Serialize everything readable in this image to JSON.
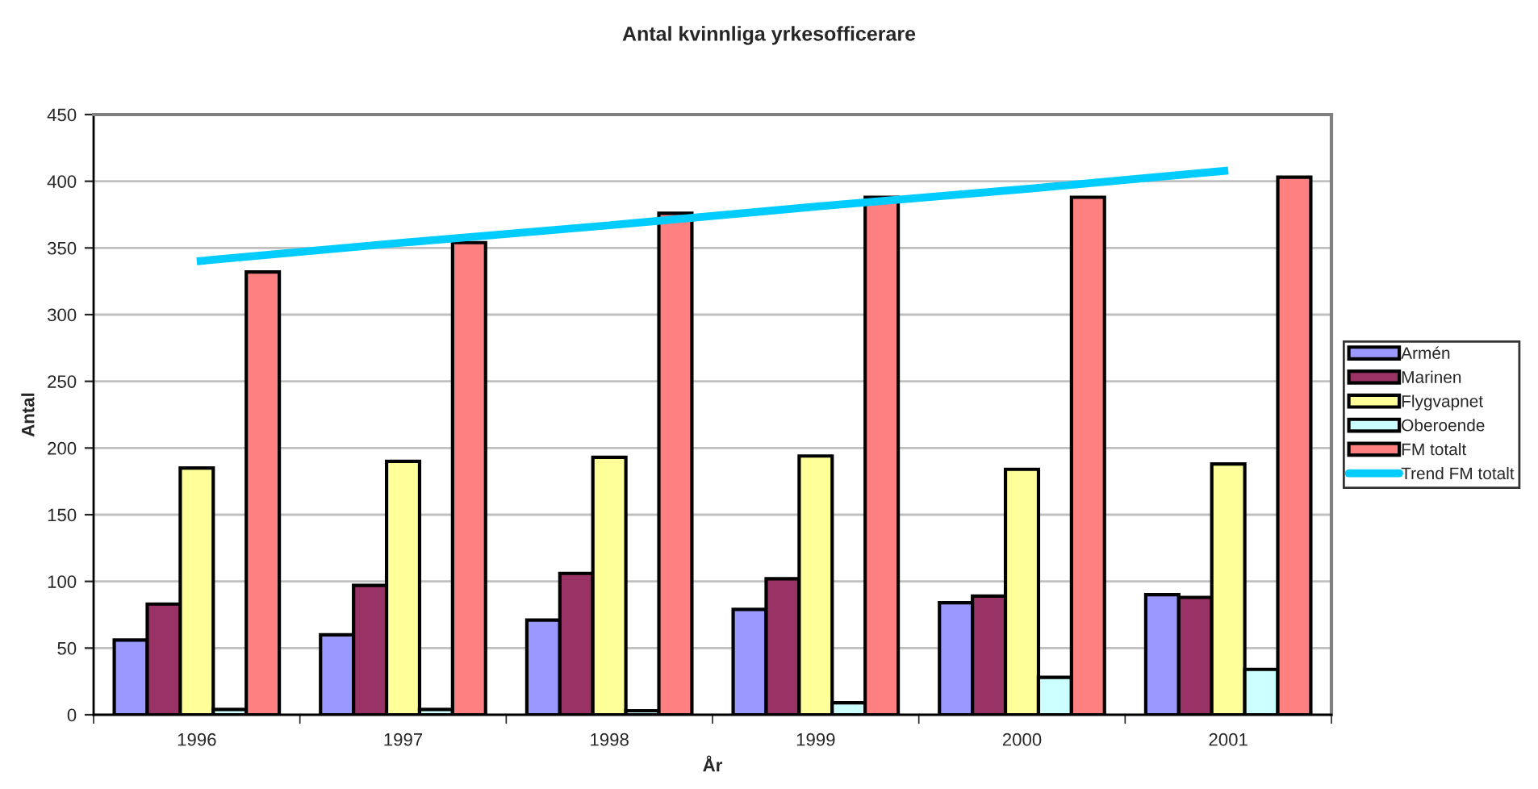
{
  "chart_data": {
    "type": "bar",
    "title": "Antal kvinnliga yrkesofficerare",
    "xlabel": "År",
    "ylabel": "Antal",
    "categories": [
      "1996",
      "1997",
      "1998",
      "1999",
      "2000",
      "2001"
    ],
    "series": [
      {
        "name": "Armén",
        "color": "#9999ff",
        "values": [
          56,
          60,
          71,
          79,
          84,
          90
        ]
      },
      {
        "name": "Marinen",
        "color": "#993366",
        "values": [
          83,
          97,
          106,
          102,
          89,
          88
        ]
      },
      {
        "name": "Flygvapnet",
        "color": "#ffff99",
        "values": [
          185,
          190,
          193,
          194,
          184,
          188
        ]
      },
      {
        "name": "Oberoende",
        "color": "#ccffff",
        "values": [
          4,
          4,
          3,
          9,
          28,
          34
        ]
      },
      {
        "name": "FM totalt",
        "color": "#ff8080",
        "values": [
          332,
          354,
          376,
          388,
          388,
          403
        ]
      },
      {
        "name": "Trend FM totalt",
        "type": "line",
        "color": "#00ccff",
        "values": [
          340,
          354,
          367,
          381,
          394,
          408
        ]
      }
    ],
    "ylim": [
      0,
      450
    ],
    "yticks": [
      0,
      50,
      100,
      150,
      200,
      250,
      300,
      350,
      400,
      450
    ],
    "grid": "y",
    "legend": "right"
  }
}
